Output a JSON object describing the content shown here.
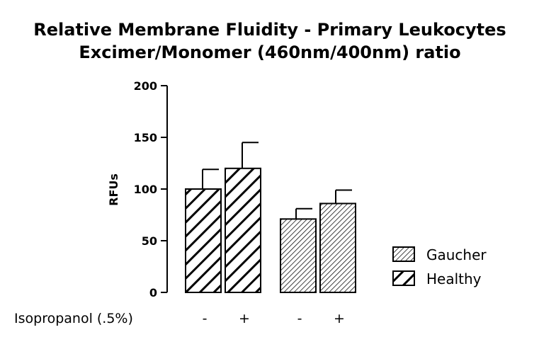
{
  "chart_data": {
    "type": "bar",
    "title": "Relative Membrane Fluidity - Primary  Leukocytes",
    "subtitle": "Excimer/Monomer (460nm/400nm) ratio",
    "ylabel": "RFUs",
    "ylim": [
      0,
      200
    ],
    "yticks": [
      "0",
      "50",
      "100",
      "150",
      "200"
    ],
    "xlabel": "Isopropanol (.5%)",
    "bars": [
      {
        "series": "Healthy",
        "treatment": "-",
        "value": 100,
        "error": 19
      },
      {
        "series": "Healthy",
        "treatment": "+",
        "value": 120,
        "error": 25
      },
      {
        "series": "Gaucher",
        "treatment": "-",
        "value": 71,
        "error": 10
      },
      {
        "series": "Gaucher",
        "treatment": "+",
        "value": 86,
        "error": 13
      }
    ],
    "legend": [
      {
        "name": "Gaucher",
        "pattern": "thin-hatch"
      },
      {
        "name": "Healthy",
        "pattern": "thick-hatch"
      }
    ],
    "legend_position": "right",
    "grid": false
  }
}
